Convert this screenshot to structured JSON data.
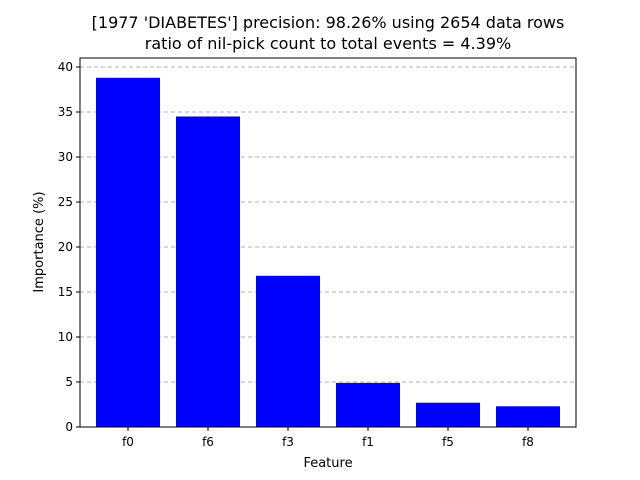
{
  "chart_data": {
    "type": "bar",
    "title": "[1977 'DIABETES'] precision: 98.26% using 2654 data rows",
    "subtitle": "ratio of nil-pick count to total events = 4.39%",
    "xlabel": "Feature",
    "ylabel": "Importance (%)",
    "categories": [
      "f0",
      "f6",
      "f3",
      "f1",
      "f5",
      "f8"
    ],
    "values": [
      38.8,
      34.5,
      16.8,
      4.9,
      2.7,
      2.3
    ],
    "ylim": [
      0,
      41
    ],
    "yticks": [
      0,
      5,
      10,
      15,
      20,
      25,
      30,
      35,
      40
    ],
    "grid": "y-dashed",
    "bar_color": "#0000ff"
  }
}
